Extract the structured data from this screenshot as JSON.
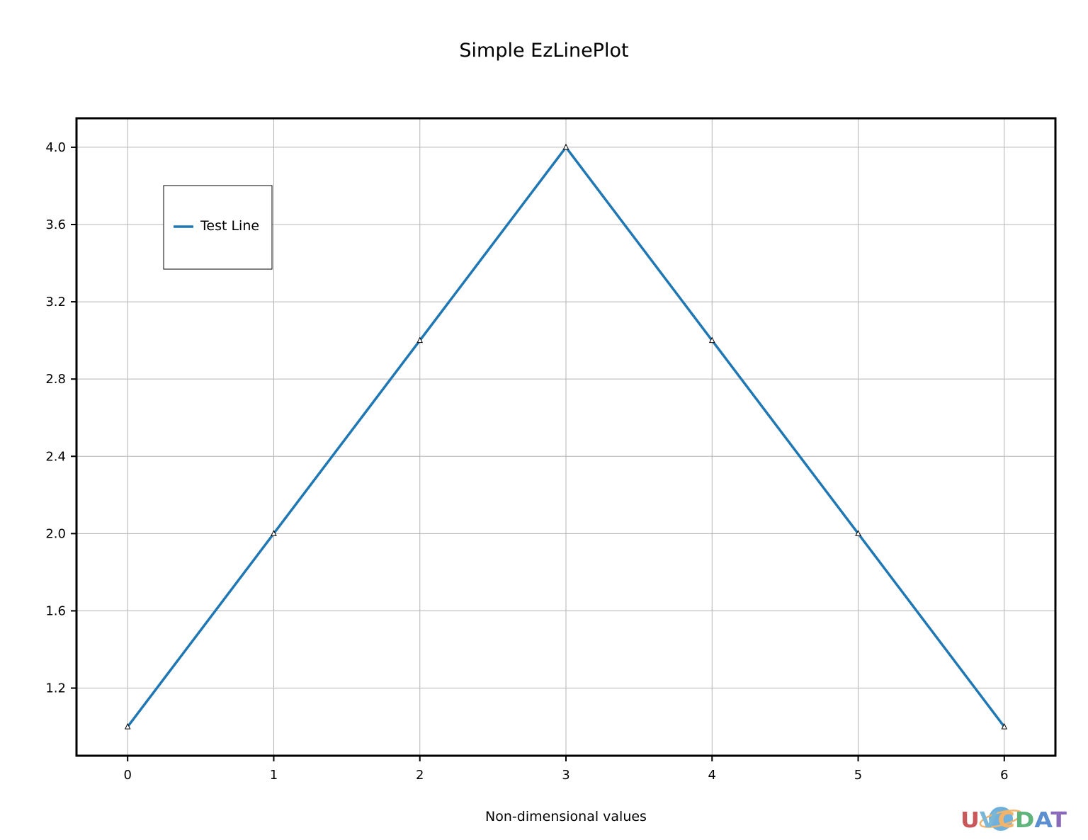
{
  "chart_data": {
    "type": "line",
    "title": "Simple EzLinePlot",
    "xlabel": "Non-dimensional values",
    "ylabel": "",
    "x": [
      0,
      1,
      2,
      3,
      4,
      5,
      6
    ],
    "series": [
      {
        "name": "Test Line",
        "values": [
          1.0,
          2.0,
          3.0,
          4.0,
          3.0,
          2.0,
          1.0
        ],
        "color": "#1f77b4",
        "marker": "triangle"
      }
    ],
    "xlim": [
      -0.35,
      6.35
    ],
    "ylim": [
      0.85,
      4.15
    ],
    "xticks": [
      0,
      1,
      2,
      3,
      4,
      5,
      6
    ],
    "xtick_labels": [
      "0",
      "1",
      "2",
      "3",
      "4",
      "5",
      "6"
    ],
    "yticks": [
      1.2,
      1.6,
      2.0,
      2.4,
      2.8,
      3.2,
      3.6,
      4.0
    ],
    "ytick_labels": [
      "1.2",
      "1.6",
      "2.0",
      "2.4",
      "2.8",
      "3.2",
      "3.6",
      "4.0"
    ],
    "grid": true,
    "legend": "top-left"
  },
  "logo": {
    "text": "UVCDAT",
    "colors": [
      "#c9585b",
      "#7ab6d6",
      "#f2b36b",
      "#5fb37b",
      "#5b8fcf",
      "#8a6ab8"
    ]
  }
}
